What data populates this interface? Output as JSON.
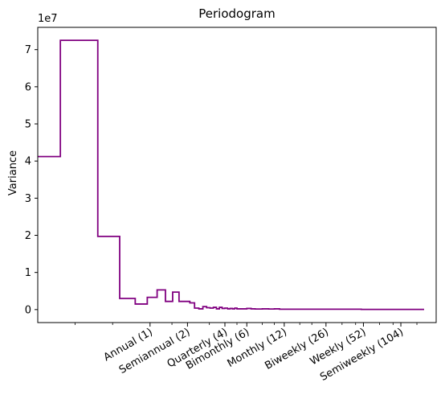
{
  "chart_data": {
    "type": "line",
    "drawstyle": "steps-post",
    "title": "Periodogram",
    "xlabel": "",
    "ylabel": "Variance",
    "y_offset_text": "1e7",
    "y_scale": 10000000,
    "x_scale": "log",
    "xlim": [
      0.125,
      200
    ],
    "ylim": [
      -0.35,
      7.6
    ],
    "y_ticks": [
      0,
      1,
      2,
      3,
      4,
      5,
      6,
      7
    ],
    "y_tick_labels": [
      "0",
      "1",
      "2",
      "3",
      "4",
      "5",
      "6",
      "7"
    ],
    "x_ticks": [
      1,
      2,
      4,
      6,
      12,
      26,
      52,
      104
    ],
    "x_tick_labels": [
      "Annual (1)",
      "Semiannual (2)",
      "Quarterly (4)",
      "Bimonthly (6)",
      "Monthly (12)",
      "Biweekly (26)",
      "Weekly (52)",
      "Semiweekly (104)"
    ],
    "minor_x_ticks": [
      0.25,
      0.5,
      1.5,
      3,
      5,
      8,
      10,
      16,
      20,
      35,
      45,
      70,
      90,
      140
    ],
    "grid": false,
    "legend": "none",
    "line_color": "#800080",
    "series": [
      {
        "x": [
          0.125,
          0.19,
          0.38,
          0.57,
          0.76,
          0.95,
          1.14,
          1.33,
          1.52,
          1.71,
          1.9,
          2.09,
          2.28,
          2.47,
          2.66,
          2.85,
          3.04,
          3.23,
          3.42,
          3.61,
          3.8,
          4.0,
          4.2,
          4.4,
          4.6,
          4.8,
          5.0,
          5.5,
          6.0,
          6.5,
          7.0,
          8.0,
          9.0,
          10.0,
          11.0,
          12.0,
          14.0,
          17.0,
          20.0,
          30.0,
          50.0,
          100.0,
          160.0
        ],
        "values": [
          4.12,
          7.25,
          1.97,
          0.3,
          0.15,
          0.33,
          0.53,
          0.22,
          0.47,
          0.22,
          0.22,
          0.18,
          0.04,
          0.02,
          0.08,
          0.05,
          0.04,
          0.06,
          0.02,
          0.06,
          0.03,
          0.04,
          0.02,
          0.03,
          0.02,
          0.04,
          0.02,
          0.02,
          0.03,
          0.02,
          0.015,
          0.02,
          0.015,
          0.02,
          0.01,
          0.01,
          0.01,
          0.01,
          0.01,
          0.01,
          0.005,
          0.005,
          0.005
        ]
      }
    ]
  }
}
